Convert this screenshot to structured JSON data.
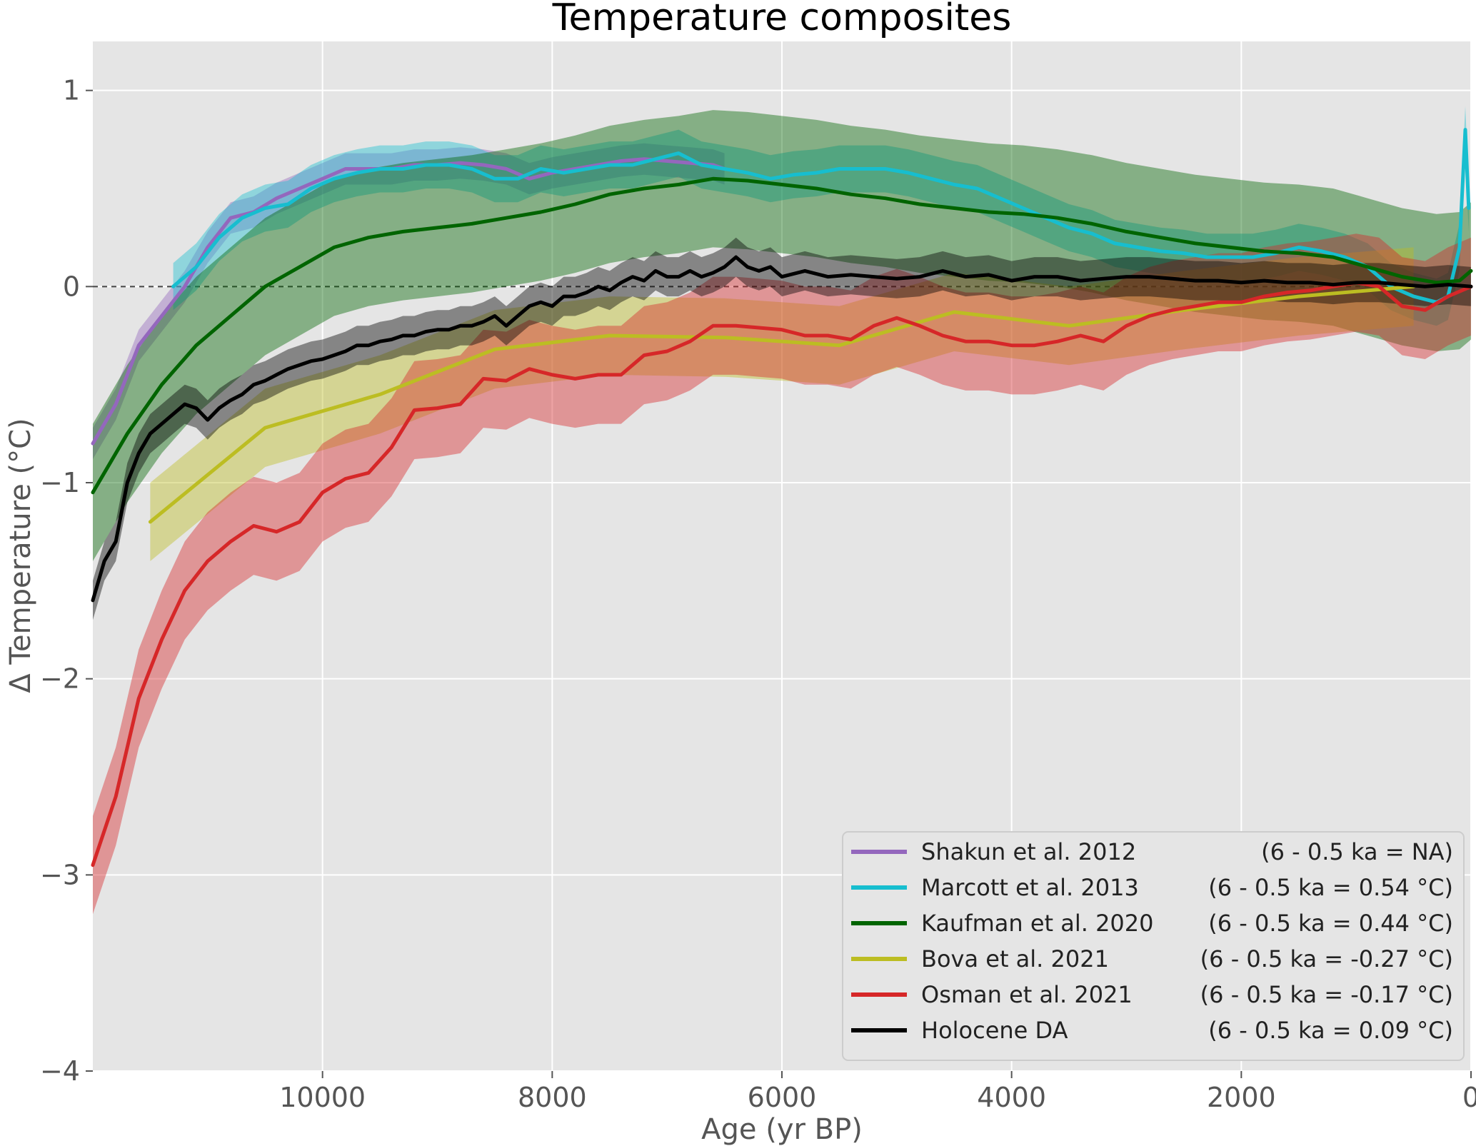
{
  "chart_data": {
    "type": "line",
    "title": "Temperature composites",
    "xlabel": "Age (yr BP)",
    "ylabel": "Δ Temperature (°C)",
    "xlim": [
      12000,
      0
    ],
    "ylim": [
      -4,
      1.25
    ],
    "x_ticks": [
      10000,
      8000,
      6000,
      4000,
      2000,
      0
    ],
    "x_tick_labels": [
      "10000",
      "8000",
      "6000",
      "4000",
      "2000",
      "0"
    ],
    "y_ticks": [
      -4,
      -3,
      -2,
      -1,
      0,
      1
    ],
    "y_tick_labels": [
      "−4",
      "−3",
      "−2",
      "−1",
      "0",
      "1"
    ],
    "grid": true,
    "zero_line": true,
    "legend_position": "lower-right",
    "series": [
      {
        "name": "Shakun et al. 2012",
        "stat": "(6 - 0.5 ka = NA)",
        "color": "#9467bd",
        "x": [
          12000,
          11800,
          11600,
          11400,
          11200,
          11000,
          10800,
          10600,
          10400,
          10200,
          10000,
          9800,
          9600,
          9400,
          9200,
          9000,
          8800,
          8600,
          8400,
          8200,
          8000,
          7800,
          7600,
          7400,
          7200,
          7000,
          6800,
          6600,
          6500
        ],
        "y": [
          -0.8,
          -0.6,
          -0.3,
          -0.15,
          0.0,
          0.2,
          0.35,
          0.38,
          0.45,
          0.5,
          0.55,
          0.6,
          0.6,
          0.6,
          0.62,
          0.62,
          0.63,
          0.62,
          0.6,
          0.55,
          0.58,
          0.6,
          0.62,
          0.64,
          0.65,
          0.64,
          0.63,
          0.62,
          0.6
        ],
        "band": 0.08
      },
      {
        "name": "Marcott et al. 2013",
        "stat": "(6 - 0.5 ka = 0.54 °C)",
        "color": "#17becf",
        "x": [
          11300,
          11100,
          10900,
          10700,
          10500,
          10300,
          10100,
          9900,
          9700,
          9500,
          9300,
          9100,
          8900,
          8700,
          8500,
          8300,
          8100,
          7900,
          7700,
          7500,
          7300,
          7100,
          6900,
          6700,
          6500,
          6300,
          6100,
          5900,
          5700,
          5500,
          5300,
          5100,
          4900,
          4700,
          4500,
          4300,
          4100,
          3900,
          3700,
          3500,
          3300,
          3100,
          2900,
          2700,
          2500,
          2300,
          2100,
          1900,
          1700,
          1500,
          1300,
          1100,
          900,
          700,
          500,
          300,
          200,
          100,
          50,
          20
        ],
        "y": [
          0.0,
          0.1,
          0.25,
          0.35,
          0.4,
          0.42,
          0.5,
          0.55,
          0.58,
          0.6,
          0.6,
          0.62,
          0.62,
          0.6,
          0.55,
          0.55,
          0.6,
          0.58,
          0.6,
          0.62,
          0.62,
          0.65,
          0.68,
          0.62,
          0.6,
          0.58,
          0.55,
          0.57,
          0.58,
          0.6,
          0.6,
          0.6,
          0.58,
          0.55,
          0.52,
          0.5,
          0.45,
          0.4,
          0.35,
          0.3,
          0.27,
          0.22,
          0.2,
          0.18,
          0.17,
          0.15,
          0.15,
          0.15,
          0.17,
          0.2,
          0.18,
          0.15,
          0.1,
          0.0,
          -0.05,
          -0.08,
          -0.05,
          0.2,
          0.8,
          0.4
        ],
        "band": 0.12
      },
      {
        "name": "Kaufman et al. 2020",
        "stat": "(6 - 0.5 ka = 0.44 °C)",
        "color": "#006400",
        "x": [
          12000,
          11700,
          11400,
          11100,
          10800,
          10500,
          10200,
          9900,
          9600,
          9300,
          9000,
          8700,
          8400,
          8100,
          7800,
          7500,
          7200,
          6900,
          6600,
          6300,
          6000,
          5700,
          5400,
          5100,
          4800,
          4500,
          4200,
          3900,
          3600,
          3300,
          3000,
          2700,
          2400,
          2100,
          1800,
          1500,
          1200,
          900,
          600,
          300,
          100,
          0
        ],
        "y": [
          -1.05,
          -0.75,
          -0.5,
          -0.3,
          -0.15,
          0.0,
          0.1,
          0.2,
          0.25,
          0.28,
          0.3,
          0.32,
          0.35,
          0.38,
          0.42,
          0.47,
          0.5,
          0.52,
          0.55,
          0.54,
          0.52,
          0.5,
          0.47,
          0.45,
          0.42,
          0.4,
          0.38,
          0.37,
          0.35,
          0.32,
          0.28,
          0.25,
          0.22,
          0.2,
          0.18,
          0.17,
          0.15,
          0.1,
          0.05,
          0.02,
          0.03,
          0.08
        ],
        "band": 0.35
      },
      {
        "name": "Bova et al. 2021",
        "stat": "(6 - 0.5 ka = -0.27 °C)",
        "color": "#bcbd22",
        "x": [
          11500,
          10500,
          9500,
          8500,
          7500,
          6500,
          5500,
          4500,
          3500,
          2500,
          1500,
          500
        ],
        "y": [
          -1.2,
          -0.72,
          -0.55,
          -0.32,
          -0.25,
          -0.26,
          -0.3,
          -0.13,
          -0.2,
          -0.12,
          -0.05,
          0.0
        ],
        "band": 0.2
      },
      {
        "name": "Osman et al. 2021",
        "stat": "(6 - 0.5 ka = -0.17 °C)",
        "color": "#d62728",
        "x": [
          12000,
          11800,
          11600,
          11400,
          11200,
          11000,
          10800,
          10600,
          10400,
          10200,
          10000,
          9800,
          9600,
          9400,
          9200,
          9000,
          8800,
          8600,
          8400,
          8200,
          8000,
          7800,
          7600,
          7400,
          7200,
          7000,
          6800,
          6600,
          6400,
          6200,
          6000,
          5800,
          5600,
          5400,
          5200,
          5000,
          4800,
          4600,
          4400,
          4200,
          4000,
          3800,
          3600,
          3400,
          3200,
          3000,
          2800,
          2600,
          2400,
          2200,
          2000,
          1800,
          1600,
          1400,
          1200,
          1000,
          800,
          600,
          400,
          200,
          0
        ],
        "y": [
          -2.95,
          -2.6,
          -2.1,
          -1.8,
          -1.55,
          -1.4,
          -1.3,
          -1.22,
          -1.25,
          -1.2,
          -1.05,
          -0.98,
          -0.95,
          -0.82,
          -0.63,
          -0.62,
          -0.6,
          -0.47,
          -0.48,
          -0.42,
          -0.45,
          -0.47,
          -0.45,
          -0.45,
          -0.35,
          -0.33,
          -0.28,
          -0.2,
          -0.2,
          -0.21,
          -0.22,
          -0.25,
          -0.25,
          -0.27,
          -0.2,
          -0.16,
          -0.2,
          -0.25,
          -0.28,
          -0.28,
          -0.3,
          -0.3,
          -0.28,
          -0.25,
          -0.28,
          -0.2,
          -0.15,
          -0.12,
          -0.1,
          -0.08,
          -0.08,
          -0.05,
          -0.03,
          -0.02,
          0.0,
          0.02,
          0.0,
          -0.1,
          -0.12,
          -0.05,
          0.0
        ],
        "band": 0.25
      },
      {
        "name": "Holocene DA",
        "stat": "(6 - 0.5 ka = 0.09 °C)",
        "color": "#000000",
        "x": [
          12000,
          11900,
          11800,
          11700,
          11600,
          11500,
          11400,
          11300,
          11200,
          11100,
          11000,
          10900,
          10800,
          10700,
          10600,
          10500,
          10400,
          10300,
          10200,
          10100,
          10000,
          9900,
          9800,
          9700,
          9600,
          9500,
          9400,
          9300,
          9200,
          9100,
          9000,
          8900,
          8800,
          8700,
          8600,
          8500,
          8400,
          8300,
          8200,
          8100,
          8000,
          7900,
          7800,
          7700,
          7600,
          7500,
          7400,
          7300,
          7200,
          7100,
          7000,
          6900,
          6800,
          6700,
          6600,
          6500,
          6400,
          6300,
          6200,
          6100,
          6000,
          5800,
          5600,
          5400,
          5200,
          5000,
          4800,
          4600,
          4400,
          4200,
          4000,
          3800,
          3600,
          3400,
          3200,
          3000,
          2800,
          2600,
          2400,
          2200,
          2000,
          1800,
          1600,
          1400,
          1200,
          1000,
          800,
          600,
          400,
          200,
          0
        ],
        "y": [
          -1.6,
          -1.4,
          -1.3,
          -1.0,
          -0.85,
          -0.75,
          -0.7,
          -0.65,
          -0.6,
          -0.62,
          -0.68,
          -0.62,
          -0.58,
          -0.55,
          -0.5,
          -0.48,
          -0.45,
          -0.42,
          -0.4,
          -0.38,
          -0.37,
          -0.35,
          -0.33,
          -0.3,
          -0.3,
          -0.28,
          -0.27,
          -0.25,
          -0.25,
          -0.23,
          -0.22,
          -0.22,
          -0.2,
          -0.2,
          -0.18,
          -0.15,
          -0.2,
          -0.15,
          -0.1,
          -0.08,
          -0.1,
          -0.05,
          -0.05,
          -0.03,
          0.0,
          -0.02,
          0.02,
          0.05,
          0.03,
          0.08,
          0.05,
          0.05,
          0.08,
          0.05,
          0.07,
          0.1,
          0.15,
          0.1,
          0.08,
          0.1,
          0.05,
          0.08,
          0.05,
          0.06,
          0.05,
          0.04,
          0.05,
          0.08,
          0.05,
          0.06,
          0.03,
          0.05,
          0.05,
          0.03,
          0.04,
          0.05,
          0.05,
          0.04,
          0.03,
          0.03,
          0.02,
          0.03,
          0.02,
          0.02,
          0.01,
          0.02,
          0.02,
          0.01,
          0.0,
          0.01,
          0.0
        ],
        "band": 0.1
      }
    ]
  }
}
